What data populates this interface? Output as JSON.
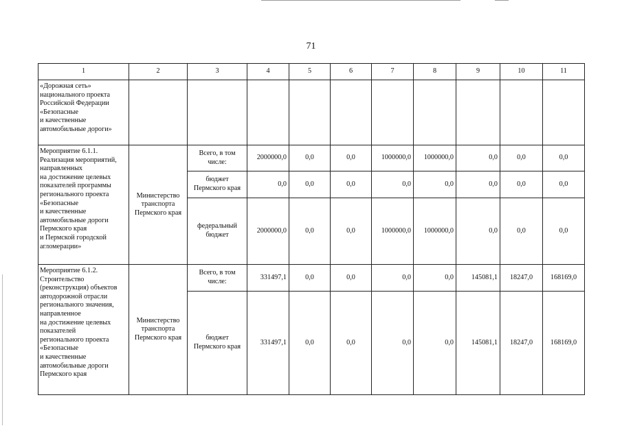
{
  "page_number": "71",
  "header": [
    "1",
    "2",
    "3",
    "4",
    "5",
    "6",
    "7",
    "8",
    "9",
    "10",
    "11"
  ],
  "row0": {
    "name": "«Дорожная сеть»\nнационального проекта\nРоссийской Федерации\n«Безопасные\nи качественные\nавтомобильные дороги»"
  },
  "row1": {
    "name": "Мероприятие 6.1.1.\nРеализация мероприятий,\nнаправленных\nна достижение целевых\nпоказателей программы\nрегионального проекта\n«Безопасные\nи качественные\nавтомобильные дороги\nПермского края\nи Пермской городской\nагломерации»",
    "executor": "Министерство транспорта Пермского края",
    "sub": [
      {
        "source": "Всего, в том числе:",
        "values": [
          "2000000,0",
          "0,0",
          "0,0",
          "1000000,0",
          "1000000,0",
          "0,0",
          "0,0",
          "0,0"
        ]
      },
      {
        "source": "бюджет Пермского края",
        "values": [
          "0,0",
          "0,0",
          "0,0",
          "0,0",
          "0,0",
          "0,0",
          "0,0",
          "0,0"
        ]
      },
      {
        "source": "федеральный бюджет",
        "values": [
          "2000000,0",
          "0,0",
          "0,0",
          "1000000,0",
          "1000000,0",
          "0,0",
          "0,0",
          "0,0"
        ]
      }
    ]
  },
  "row2": {
    "name": "Мероприятие 6.1.2.\nСтроительство\n(реконструкция) объектов\nавтодорожной отрасли\nрегионального значения,\nнаправленное\nна достижение целевых\nпоказателей\nрегионального проекта\n«Безопасные\nи качественные\nавтомобильные дороги\nПермского края",
    "executor": "Министерство транспорта Пермского края",
    "sub": [
      {
        "source": "Всего, в том числе:",
        "values": [
          "331497,1",
          "0,0",
          "0,0",
          "0,0",
          "0,0",
          "145081,1",
          "18247,0",
          "168169,0"
        ]
      },
      {
        "source": "бюджет Пермского края",
        "values": [
          "331497,1",
          "0,0",
          "0,0",
          "0,0",
          "0,0",
          "145081,1",
          "18247,0",
          "168169,0"
        ]
      }
    ]
  }
}
